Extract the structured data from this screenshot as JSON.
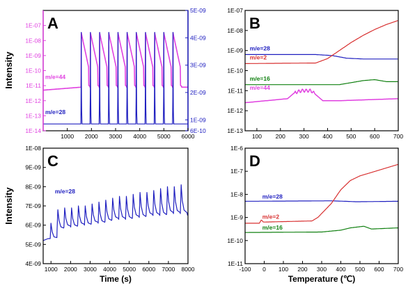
{
  "y_axis_label": "Intensity",
  "colors": {
    "magenta": "#e040e0",
    "blue": "#2020c0",
    "red": "#d83030",
    "green": "#108010",
    "axis": "#000000"
  },
  "chart_data": [
    {
      "panel": "A",
      "type": "line",
      "xlabel": "",
      "xlim": [
        0,
        6000
      ],
      "xticks": [
        "1000",
        "2000",
        "3000",
        "4000",
        "5000",
        "6000"
      ],
      "left_axis": {
        "scale": "log",
        "lim": [
          1e-14,
          1e-06
        ],
        "color": "#e040e0",
        "ticks": [
          "1E-14",
          "1E-13",
          "1E-12",
          "1E-11",
          "1E-10",
          "1E-09",
          "1E-08",
          "1E-07"
        ]
      },
      "right_axis": {
        "scale": "linear",
        "lim": [
          6e-10,
          5e-09
        ],
        "color": "#2020c0",
        "ticks": [
          "6E-10",
          "1E-09",
          "2E-09",
          "3E-09",
          "4E-09",
          "5E-09"
        ]
      },
      "annotations": [
        "m/e=44",
        "m/e=28"
      ],
      "series": [
        {
          "name": "m/e=44",
          "axis": "left",
          "color": "#e040e0",
          "baseline_log": -11.1,
          "peak_log": -7.5,
          "peaks_x": [
            1580,
            1960,
            2340,
            2720,
            3100,
            3480,
            3860,
            4240,
            4620,
            5000,
            5380
          ]
        },
        {
          "name": "m/e=28",
          "axis": "right",
          "color": "#2020c0",
          "baseline": 8.5e-10,
          "peak": 4.2e-09,
          "peaks_x": [
            1580,
            1960,
            2340,
            2720,
            3100,
            3480,
            3860,
            4240,
            4620,
            5000,
            5380
          ]
        }
      ]
    },
    {
      "panel": "B",
      "type": "line",
      "xlabel": "",
      "xlim": [
        50,
        700
      ],
      "xticks": [
        "100",
        "200",
        "300",
        "400",
        "500",
        "600",
        "700"
      ],
      "yscale": "log",
      "ylim": [
        1e-13,
        1e-07
      ],
      "yticks": [
        "1E-13",
        "1E-12",
        "1E-11",
        "1E-10",
        "1E-09",
        "1E-08",
        "1E-07"
      ],
      "series": [
        {
          "name": "m/e=28",
          "color": "#2020c0",
          "x": [
            50,
            350,
            420,
            480,
            550,
            700
          ],
          "y_log": [
            -9.2,
            -9.2,
            -9.25,
            -9.38,
            -9.42,
            -9.42
          ]
        },
        {
          "name": "m/e=2",
          "color": "#d83030",
          "x": [
            50,
            350,
            400,
            450,
            500,
            550,
            600,
            650,
            700
          ],
          "y_log": [
            -9.65,
            -9.62,
            -9.4,
            -9.0,
            -8.6,
            -8.25,
            -7.95,
            -7.7,
            -7.5
          ]
        },
        {
          "name": "m/e=16",
          "color": "#108010",
          "x": [
            50,
            450,
            500,
            550,
            600,
            650,
            700
          ],
          "y_log": [
            -10.7,
            -10.7,
            -10.6,
            -10.5,
            -10.45,
            -10.55,
            -10.55
          ]
        },
        {
          "name": "m/e=44",
          "color": "#e040e0",
          "x": [
            50,
            230,
            260,
            290,
            330,
            350,
            380,
            450,
            700
          ],
          "y_log": [
            -11.6,
            -11.4,
            -11.1,
            -11.0,
            -11.0,
            -11.2,
            -11.5,
            -11.5,
            -11.4
          ]
        }
      ]
    },
    {
      "panel": "C",
      "type": "line",
      "xlabel": "Time (s)",
      "xlim": [
        600,
        8000
      ],
      "xticks": [
        "1000",
        "2000",
        "3000",
        "4000",
        "5000",
        "6000",
        "7000",
        "8000"
      ],
      "yscale": "linear",
      "ylim": [
        4e-09,
        1e-08
      ],
      "yticks": [
        "4E-09",
        "5E-09",
        "6E-09",
        "7E-09",
        "8E-09",
        "9E-09",
        "1E-08"
      ],
      "annotations": [
        "m/e=28"
      ],
      "series": [
        {
          "name": "m/e=28",
          "color": "#2020c0",
          "peaks_x": [
            1000,
            1350,
            1700,
            2050,
            2400,
            2750,
            3100,
            3450,
            3800,
            4150,
            4500,
            4850,
            5200,
            5550,
            5900,
            6250,
            6600,
            6950,
            7300,
            7650
          ],
          "peaks_y": [
            6.1e-09,
            6.8e-09,
            6.9e-09,
            6.9e-09,
            7e-09,
            7e-09,
            7.1e-09,
            7.2e-09,
            7.3e-09,
            7.4e-09,
            7.5e-09,
            7.5e-09,
            7.6e-09,
            7.7e-09,
            7.7e-09,
            7.8e-09,
            7.9e-09,
            8e-09,
            8e-09,
            8.1e-09
          ],
          "base_y": [
            5.3e-09,
            5.8e-09,
            5.9e-09,
            5.9e-09,
            6e-09,
            6e-09,
            6.1e-09,
            6.1e-09,
            6.2e-09,
            6.3e-09,
            6.3e-09,
            6.3e-09,
            6.4e-09,
            6.4e-09,
            6.5e-09,
            6.5e-09,
            6.5e-09,
            6.6e-09,
            6.6e-09,
            6.6e-09
          ]
        }
      ]
    },
    {
      "panel": "D",
      "type": "line",
      "xlabel": "Temperature (℃)",
      "xlim": [
        -100,
        700
      ],
      "xticks": [
        "-100",
        "0",
        "100",
        "200",
        "300",
        "400",
        "500",
        "600",
        "700"
      ],
      "yscale": "log",
      "ylim": [
        1e-11,
        1e-06
      ],
      "yticks": [
        "1E-11",
        "1E-10",
        "1E-9",
        "1E-8",
        "1E-7",
        "1E-6"
      ],
      "series": [
        {
          "name": "m/e=28",
          "color": "#2020c0",
          "x": [
            -100,
            350,
            420,
            480,
            700
          ],
          "y_log": [
            -8.3,
            -8.28,
            -8.3,
            -8.32,
            -8.3
          ]
        },
        {
          "name": "m/e=2",
          "color": "#d83030",
          "x": [
            -100,
            -25,
            -15,
            -5,
            250,
            280,
            350,
            400,
            450,
            500,
            600,
            700
          ],
          "y_log": [
            -9.25,
            -9.25,
            -9.1,
            -9.2,
            -9.15,
            -9.0,
            -8.4,
            -7.8,
            -7.4,
            -7.2,
            -6.95,
            -6.7
          ]
        },
        {
          "name": "m/e=16",
          "color": "#108010",
          "x": [
            -100,
            300,
            400,
            450,
            500,
            520,
            560,
            700
          ],
          "y_log": [
            -9.65,
            -9.63,
            -9.55,
            -9.45,
            -9.4,
            -9.38,
            -9.5,
            -9.45
          ]
        }
      ]
    }
  ]
}
